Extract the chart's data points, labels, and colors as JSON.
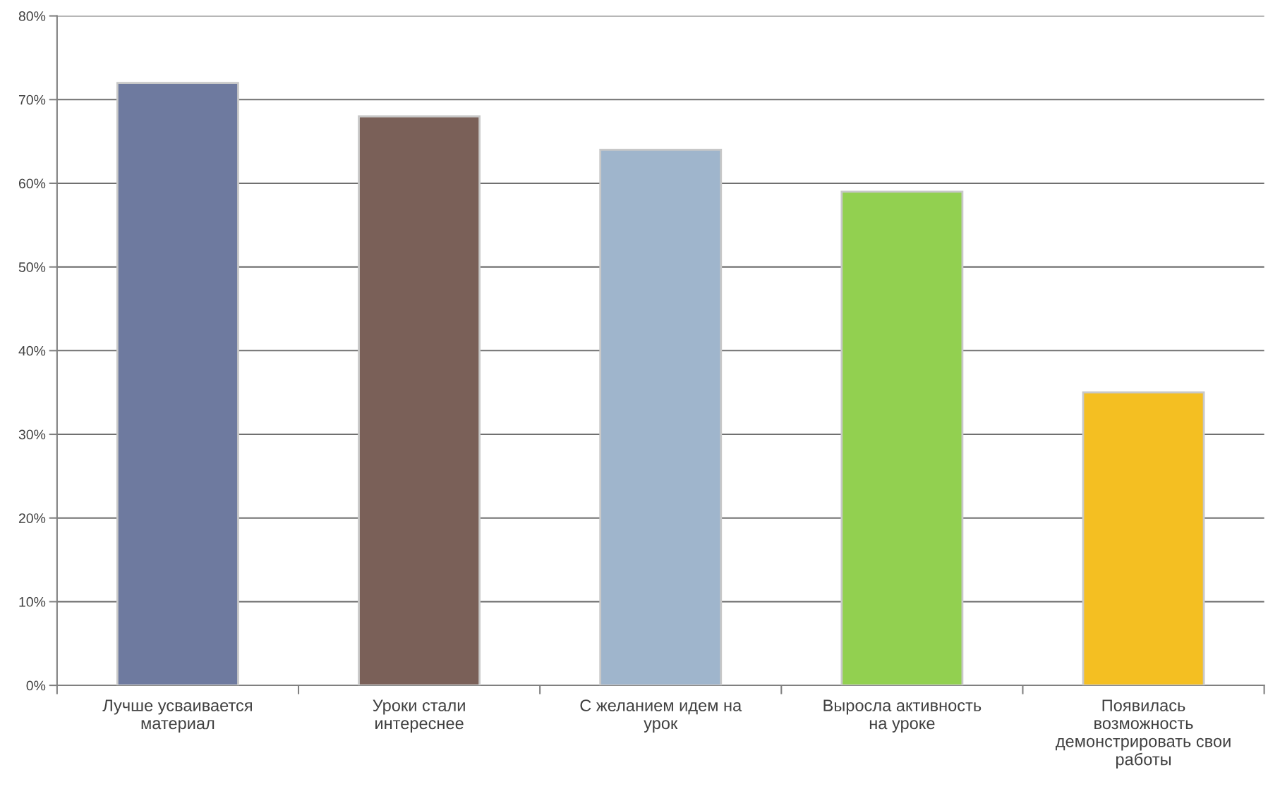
{
  "chart_data": {
    "type": "bar",
    "categories": [
      "Лучше усваивается\nматериал",
      "Уроки стали\nинтереснее",
      "С желанием идем на\nурок",
      "Выросла активность\nна уроке",
      "Появилась\nвозможность\nдемонстрировать свои\nработы"
    ],
    "values": [
      72,
      68,
      64,
      59,
      35
    ],
    "colors": [
      "#6e7a9f",
      "#7a6058",
      "#9fb5cc",
      "#92d050",
      "#f4bf22"
    ],
    "ylim": [
      0,
      80
    ],
    "yticks": [
      {
        "value": 0,
        "label": "0%"
      },
      {
        "value": 10,
        "label": "10%"
      },
      {
        "value": 20,
        "label": "20%"
      },
      {
        "value": 30,
        "label": "30%"
      },
      {
        "value": 40,
        "label": "40%"
      },
      {
        "value": 50,
        "label": "50%"
      },
      {
        "value": 60,
        "label": "60%"
      },
      {
        "value": 70,
        "label": "70%"
      },
      {
        "value": 80,
        "label": "80%"
      }
    ],
    "grid": "y",
    "legend": false
  }
}
